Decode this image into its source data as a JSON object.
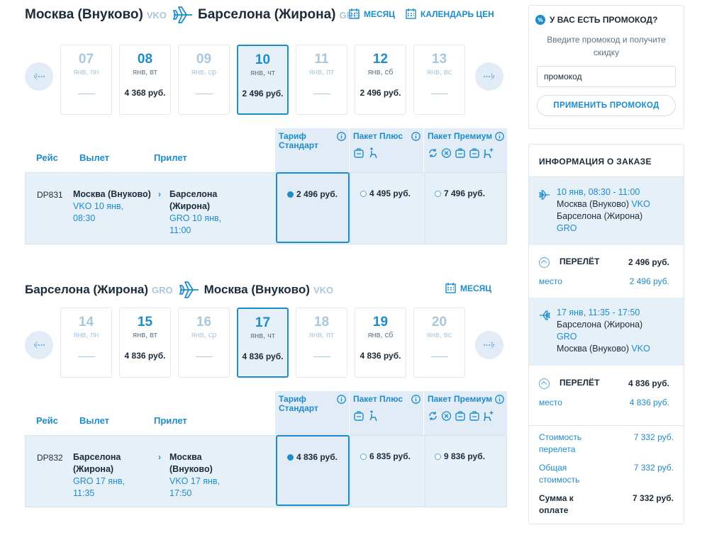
{
  "outbound": {
    "from_city": "Москва (Внуково)",
    "from_code": "VKO",
    "to_city": "Барселона (Жирона)",
    "to_code": "GRO",
    "month_link": "МЕСЯЦ",
    "calendar_link": "КАЛЕНДАРЬ ЦЕН",
    "days": [
      {
        "num": "07",
        "weekday": "янв, пн",
        "price": "",
        "state": "disabled"
      },
      {
        "num": "08",
        "weekday": "янв, вт",
        "price": "4 368 руб.",
        "state": "active"
      },
      {
        "num": "09",
        "weekday": "янв, ср",
        "price": "",
        "state": "disabled"
      },
      {
        "num": "10",
        "weekday": "янв, чт",
        "price": "2 496 руб.",
        "state": "selected"
      },
      {
        "num": "11",
        "weekday": "янв, пт",
        "price": "",
        "state": "disabled"
      },
      {
        "num": "12",
        "weekday": "янв, сб",
        "price": "2 496 руб.",
        "state": "active"
      },
      {
        "num": "13",
        "weekday": "янв, вс",
        "price": "",
        "state": "disabled"
      }
    ],
    "columns": {
      "flight": "Рейс",
      "departure": "Вылет",
      "arrival": "Прилет"
    },
    "tariffs": {
      "standard": "Тариф Стандарт",
      "plus": "Пакет Плюс",
      "premium": "Пакет Премиум"
    },
    "flight": {
      "number": "DP831",
      "dep_city": "Москва (Внуково)",
      "dep_when": "VKO 10 янв, 08:30",
      "arr_city": "Барселона (Жирона)",
      "arr_when": "GRO 10 янв, 11:00",
      "price_standard": "2 496 руб.",
      "price_plus": "4 495 руб.",
      "price_premium": "7 496 руб."
    }
  },
  "return": {
    "from_city": "Барселона (Жирона)",
    "from_code": "GRO",
    "to_city": "Москва (Внуково)",
    "to_code": "VKO",
    "month_link": "МЕСЯЦ",
    "days": [
      {
        "num": "14",
        "weekday": "янв, пн",
        "price": "",
        "state": "disabled"
      },
      {
        "num": "15",
        "weekday": "янв, вт",
        "price": "4 836 руб.",
        "state": "active"
      },
      {
        "num": "16",
        "weekday": "янв, ср",
        "price": "",
        "state": "disabled"
      },
      {
        "num": "17",
        "weekday": "янв, чт",
        "price": "4 836 руб.",
        "state": "selected"
      },
      {
        "num": "18",
        "weekday": "янв, пт",
        "price": "",
        "state": "disabled"
      },
      {
        "num": "19",
        "weekday": "янв, сб",
        "price": "4 836 руб.",
        "state": "active"
      },
      {
        "num": "20",
        "weekday": "янв, вс",
        "price": "",
        "state": "disabled"
      }
    ],
    "columns": {
      "flight": "Рейс",
      "departure": "Вылет",
      "arrival": "Прилет"
    },
    "tariffs": {
      "standard": "Тариф Стандарт",
      "plus": "Пакет Плюс",
      "premium": "Пакет Премиум"
    },
    "flight": {
      "number": "DP832",
      "dep_city": "Барселона (Жирона)",
      "dep_when": "GRO 17 янв, 11:35",
      "arr_city": "Москва (Внуково)",
      "arr_when": "VKO 17 янв, 17:50",
      "price_standard": "4 836 руб.",
      "price_plus": "6 835 руб.",
      "price_premium": "9 836 руб."
    }
  },
  "promo": {
    "title": "У ВАС ЕСТЬ ПРОМОКОД?",
    "hint": "Введите промокод и получите скидку",
    "input_value": "промокод",
    "button": "ПРИМЕНИТЬ ПРОМОКОД"
  },
  "order": {
    "title": "ИНФОРМАЦИЯ О ЗАКАЗЕ",
    "segment1": {
      "time": "10 янв, 08:30 - 11:00",
      "from": "Москва (Внуково)",
      "from_code": "VKO",
      "to": "Барселона (Жирона)",
      "to_code": "GRO"
    },
    "fare1": {
      "label": "ПЕРЕЛЁТ",
      "amount": "2 496 руб.",
      "sub": "место",
      "sub_amount": "2 496 руб."
    },
    "segment2": {
      "time": "17 янв, 11:35 - 17:50",
      "from": "Барселона (Жирона)",
      "from_code": "GRO",
      "to": "Москва (Внуково)",
      "to_code": "VKO"
    },
    "fare2": {
      "label": "ПЕРЕЛЁТ",
      "amount": "4 836 руб.",
      "sub": "место",
      "sub_amount": "4 836 руб."
    },
    "flight_cost_label": "Стоимость перелета",
    "flight_cost": "7 332 руб.",
    "total_cost_label": "Общая стоимость",
    "total_cost": "7 332 руб.",
    "pay_label": "Сумма к оплате",
    "pay_amount": "7 332 руб."
  },
  "colors": {
    "accent": "#1d8ccc",
    "muted": "#a9c7de",
    "selected_bg": "#e6f0f9"
  }
}
